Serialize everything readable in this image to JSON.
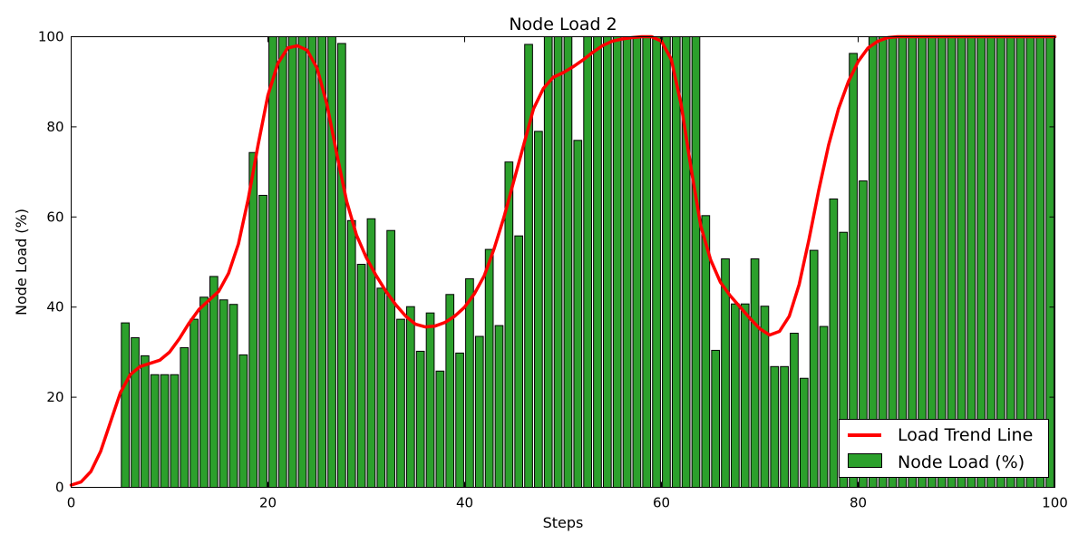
{
  "chart_data": {
    "type": "bar",
    "title": "Node Load 2",
    "xlabel": "Steps",
    "ylabel": "Node Load (%)",
    "xlim": [
      0,
      100
    ],
    "ylim": [
      0,
      100
    ],
    "xticks": [
      0,
      20,
      40,
      60,
      80,
      100
    ],
    "yticks": [
      0,
      20,
      40,
      60,
      80,
      100
    ],
    "legend_position": "lower-right",
    "colors": {
      "bars": "#2ca02c",
      "bar_edge": "#000000",
      "trend": "#ff0000"
    },
    "series": [
      {
        "name": "Node Load (%)",
        "kind": "bar",
        "x": [
          5,
          6,
          7,
          8,
          9,
          10,
          11,
          12,
          13,
          14,
          15,
          16,
          17,
          18,
          19,
          20,
          21,
          22,
          23,
          24,
          25,
          26,
          27,
          28,
          29,
          30,
          31,
          32,
          33,
          34,
          35,
          36,
          37,
          38,
          39,
          40,
          41,
          42,
          43,
          44,
          45,
          46,
          47,
          48,
          49,
          50,
          51,
          52,
          53,
          54,
          55,
          56,
          57,
          58,
          59,
          60,
          61,
          62,
          63,
          64,
          65,
          66,
          67,
          68,
          69,
          70,
          71,
          72,
          73,
          74,
          75,
          76,
          77,
          78,
          79,
          80,
          81,
          82,
          83,
          84,
          85,
          86,
          87,
          88,
          89,
          90,
          91,
          92,
          93,
          94,
          95,
          96,
          97,
          98,
          99
        ],
        "values": [
          36.5,
          33.2,
          29.2,
          25,
          25,
          25,
          31,
          37.3,
          42.2,
          46.8,
          41.6,
          40.6,
          29.4,
          74.3,
          64.8,
          100,
          100,
          100,
          100,
          100,
          100,
          100,
          98.5,
          59.2,
          49.5,
          59.6,
          44.2,
          57,
          37.3,
          40.1,
          30.2,
          38.7,
          25.8,
          42.8,
          29.8,
          46.3,
          33.5,
          52.8,
          35.9,
          72.2,
          55.8,
          98.3,
          79,
          100,
          100,
          100,
          77,
          100,
          100,
          100,
          100,
          100,
          100,
          100,
          100,
          100,
          100,
          100,
          100,
          60.3,
          30.4,
          50.7,
          40.7,
          40.7,
          50.7,
          40.2,
          26.8,
          26.8,
          34.2,
          24.2,
          52.6,
          35.7,
          64,
          56.6,
          96.3,
          68,
          100,
          100,
          100,
          100,
          100,
          100,
          100,
          100,
          100,
          100,
          100,
          100,
          100,
          100,
          100,
          100,
          100,
          100,
          100
        ]
      },
      {
        "name": "Load Trend Line",
        "kind": "line",
        "x": [
          0,
          1,
          2,
          3,
          4,
          5,
          6,
          7,
          8,
          9,
          10,
          11,
          12,
          13,
          14,
          15,
          16,
          17,
          18,
          19,
          20,
          21,
          22,
          23,
          24,
          25,
          26,
          27,
          28,
          29,
          30,
          31,
          32,
          33,
          34,
          35,
          36,
          37,
          38,
          39,
          40,
          41,
          42,
          43,
          44,
          45,
          46,
          47,
          48,
          49,
          50,
          51,
          52,
          53,
          54,
          55,
          56,
          57,
          58,
          59,
          60,
          61,
          62,
          63,
          64,
          65,
          66,
          67,
          68,
          69,
          70,
          71,
          72,
          73,
          74,
          75,
          76,
          77,
          78,
          79,
          80,
          81,
          82,
          83,
          84,
          85,
          86,
          87,
          88,
          89,
          90,
          91,
          92,
          93,
          94,
          95,
          96,
          97,
          98,
          99,
          100
        ],
        "values": [
          0.5,
          1.2,
          3.5,
          8,
          14.5,
          21,
          25,
          26.8,
          27.5,
          28.2,
          30,
          33,
          36.5,
          39.5,
          41.5,
          43.5,
          47.5,
          54,
          64,
          76,
          87,
          94,
          97.5,
          98,
          97,
          93,
          85,
          74,
          63.5,
          56,
          51,
          47,
          43.5,
          40.5,
          38,
          36.2,
          35.6,
          35.8,
          36.6,
          38,
          40,
          43,
          47,
          53,
          60,
          68,
          76,
          84,
          88.5,
          91,
          92,
          93.3,
          94.8,
          96.5,
          98,
          99,
          99.5,
          99.8,
          100,
          100,
          99,
          95,
          85,
          71,
          58,
          50.5,
          45.5,
          42.5,
          40,
          37.5,
          35.2,
          33.8,
          34.6,
          38,
          45,
          55,
          66,
          76,
          84,
          90,
          94.5,
          97.5,
          99,
          99.8,
          100,
          100,
          100,
          100,
          100,
          100,
          100,
          100,
          100,
          100,
          100,
          100,
          100,
          100,
          100,
          100,
          100
        ]
      }
    ]
  }
}
